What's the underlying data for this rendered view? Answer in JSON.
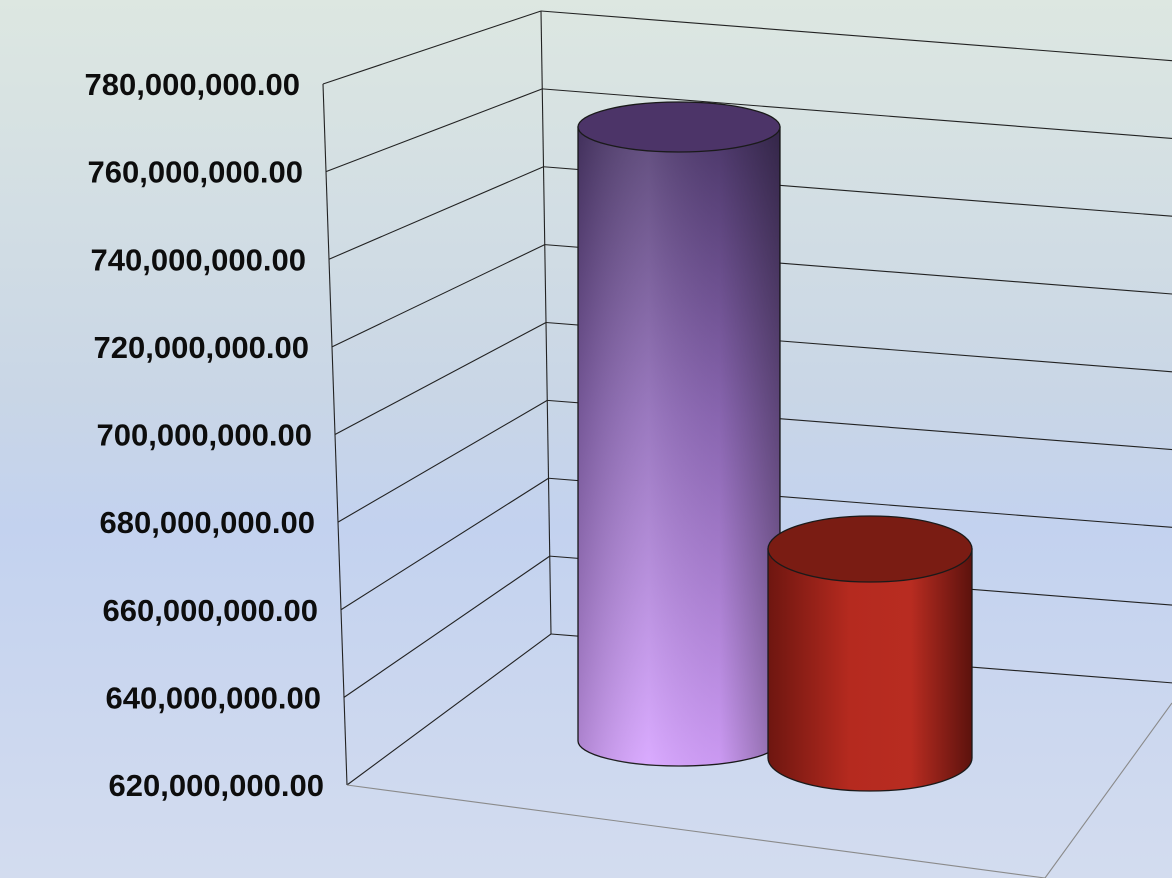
{
  "chart_data": {
    "type": "bar",
    "style": "3d-cylinder",
    "title": "",
    "xlabel": "",
    "ylabel": "",
    "categories": [
      "",
      ""
    ],
    "series": [
      {
        "values": [
          770000000,
          null
        ],
        "color": "#c79bf2"
      },
      {
        "values": [
          null,
          675000000
        ],
        "color": "#b52a1f"
      }
    ],
    "ylim": [
      620000000,
      780000000
    ],
    "y_ticks": [
      620000000,
      640000000,
      660000000,
      680000000,
      700000000,
      720000000,
      740000000,
      760000000,
      780000000
    ],
    "y_tick_labels": [
      "620,000,000.00",
      "640,000,000.00",
      "660,000,000.00",
      "680,000,000.00",
      "700,000,000.00",
      "720,000,000.00",
      "740,000,000.00",
      "760,000,000.00",
      "780,000,000.00"
    ],
    "grid": true,
    "legend": "none"
  }
}
